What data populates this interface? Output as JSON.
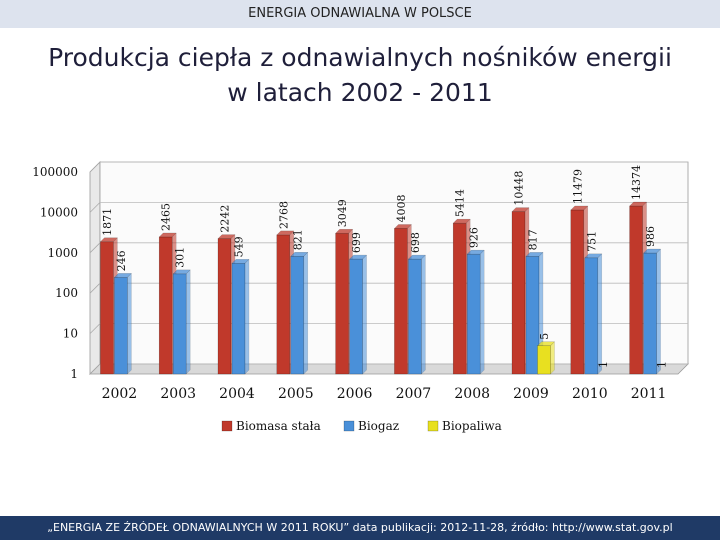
{
  "header": {
    "section_title": "ENERGIA ODNAWIALNA W POLSCE"
  },
  "slide": {
    "title_line1": "Produkcja ciepła z odnawialnych nośników energii",
    "title_line2": "w latach 2002 - 2011"
  },
  "footer": {
    "text": "„ENERGIA ZE ŹRÓDEŁ ODNAWIALNYCH W 2011 ROKU” data publikacji: 2012-11-28, źródło: http://www.stat.gov.pl"
  },
  "colors": {
    "biomasa": "#c0392b",
    "biogaz": "#4a90d9",
    "biopaliwa": "#e8e020"
  },
  "chart_data": {
    "type": "bar",
    "log_scale": true,
    "categories": [
      "2002",
      "2003",
      "2004",
      "2005",
      "2006",
      "2007",
      "2008",
      "2009",
      "2010",
      "2011"
    ],
    "y_ticks": [
      "100000",
      "10000",
      "1000",
      "100",
      "10",
      "1"
    ],
    "ylim": [
      1,
      100000
    ],
    "legend_position": "bottom",
    "series": [
      {
        "name": "Biomasa stała",
        "color": "#c0392b",
        "values": [
          1871,
          2465,
          2242,
          2768,
          3049,
          4008,
          5414,
          10448,
          11479,
          14374
        ],
        "labels": [
          "1871",
          "2465",
          "2242",
          "2768",
          "3049",
          "4008",
          "5414",
          "10448",
          "11479",
          "14374"
        ]
      },
      {
        "name": "Biogaz",
        "color": "#4a90d9",
        "values": [
          246,
          301,
          549,
          821,
          699,
          698,
          926,
          817,
          751,
          986
        ],
        "labels": [
          "246",
          "301",
          "549",
          "821",
          "699",
          "698",
          "926",
          "817",
          "751",
          "986"
        ]
      },
      {
        "name": "Biopaliwa",
        "color": "#e8e020",
        "values": [
          null,
          null,
          null,
          null,
          null,
          null,
          null,
          5,
          1,
          1
        ],
        "labels": [
          "",
          "",
          "",
          "",
          "",
          "",
          "",
          "5",
          "1",
          "1"
        ]
      }
    ]
  }
}
